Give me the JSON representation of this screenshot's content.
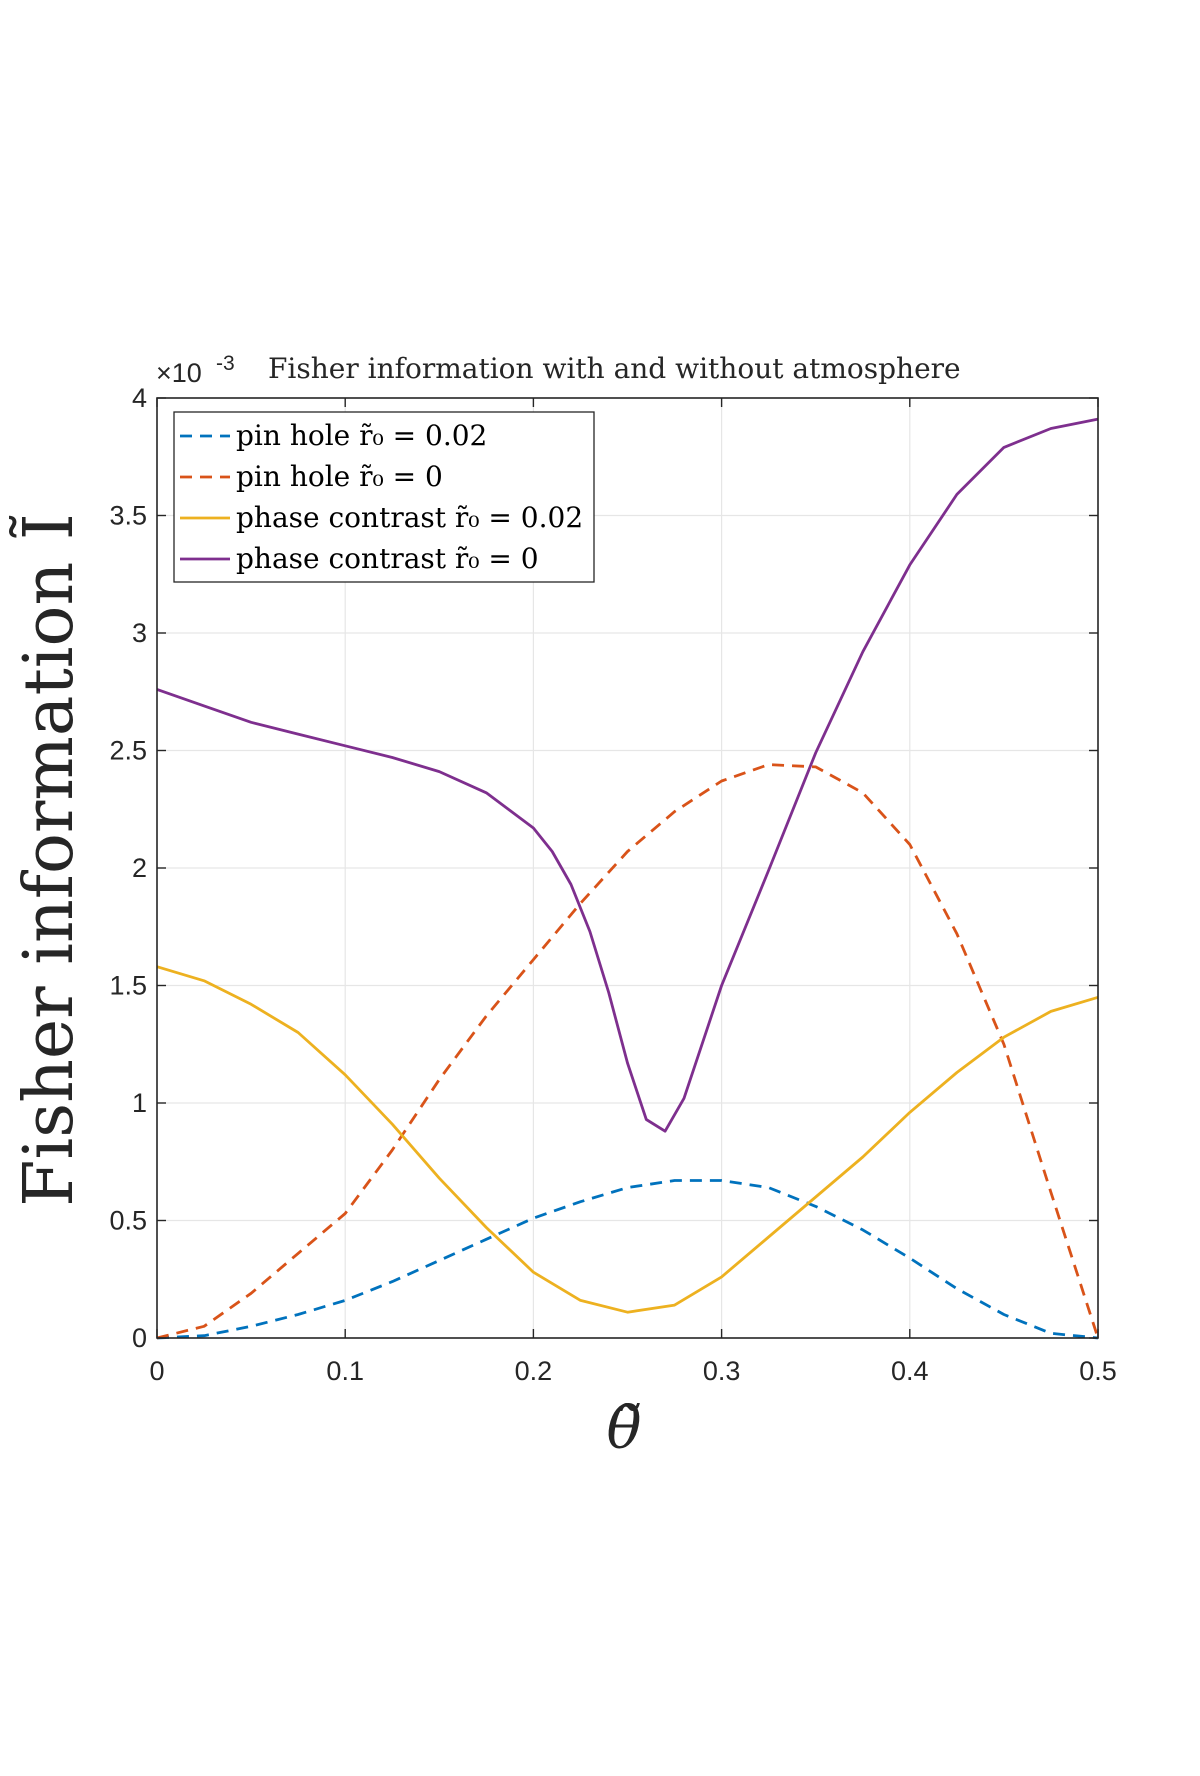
{
  "chart_data": {
    "type": "line",
    "title": "Fisher information with and without atmosphere",
    "xlabel": "θ̃",
    "ylabel": "Fisher information Ĩ",
    "y_exponent_label": "×10",
    "y_exponent_power": "-3",
    "xlim": [
      0,
      0.5
    ],
    "ylim": [
      0,
      4
    ],
    "xticks": [
      "0",
      "0.1",
      "0.2",
      "0.3",
      "0.4",
      "0.5"
    ],
    "yticks": [
      "0",
      "0.5",
      "1",
      "1.5",
      "2",
      "2.5",
      "3",
      "3.5",
      "4"
    ],
    "grid": true,
    "legend_position": "top-left",
    "series": [
      {
        "name": "pin hole r̃₀ = 0.02",
        "color": "#0072BD",
        "style": "dashed",
        "x": [
          0,
          0.025,
          0.05,
          0.075,
          0.1,
          0.125,
          0.15,
          0.175,
          0.2,
          0.225,
          0.25,
          0.275,
          0.3,
          0.325,
          0.35,
          0.375,
          0.4,
          0.425,
          0.45,
          0.475,
          0.5
        ],
        "y": [
          0,
          0.01,
          0.05,
          0.1,
          0.16,
          0.24,
          0.33,
          0.42,
          0.51,
          0.58,
          0.64,
          0.67,
          0.67,
          0.64,
          0.56,
          0.46,
          0.34,
          0.21,
          0.1,
          0.02,
          0
        ]
      },
      {
        "name": "pin hole r̃₀ = 0",
        "color": "#D95319",
        "style": "dashed",
        "x": [
          0,
          0.025,
          0.05,
          0.075,
          0.1,
          0.125,
          0.15,
          0.175,
          0.2,
          0.225,
          0.25,
          0.275,
          0.3,
          0.325,
          0.35,
          0.375,
          0.4,
          0.425,
          0.45,
          0.475,
          0.5
        ],
        "y": [
          0,
          0.05,
          0.19,
          0.36,
          0.53,
          0.8,
          1.1,
          1.37,
          1.61,
          1.85,
          2.07,
          2.24,
          2.37,
          2.44,
          2.43,
          2.32,
          2.1,
          1.72,
          1.25,
          0.62,
          0
        ]
      },
      {
        "name": "phase contrast r̃₀ = 0.02",
        "color": "#EDB120",
        "style": "solid",
        "x": [
          0,
          0.025,
          0.05,
          0.075,
          0.1,
          0.125,
          0.15,
          0.175,
          0.2,
          0.225,
          0.25,
          0.275,
          0.3,
          0.325,
          0.35,
          0.375,
          0.4,
          0.425,
          0.45,
          0.475,
          0.5
        ],
        "y": [
          1.58,
          1.52,
          1.42,
          1.3,
          1.12,
          0.91,
          0.68,
          0.47,
          0.28,
          0.16,
          0.11,
          0.14,
          0.26,
          0.43,
          0.6,
          0.77,
          0.96,
          1.13,
          1.28,
          1.39,
          1.45
        ]
      },
      {
        "name": "phase contrast r̃₀ = 0",
        "color": "#7E2F8E",
        "style": "solid",
        "x": [
          0,
          0.025,
          0.05,
          0.075,
          0.1,
          0.125,
          0.15,
          0.175,
          0.2,
          0.21,
          0.22,
          0.23,
          0.24,
          0.25,
          0.26,
          0.27,
          0.28,
          0.29,
          0.3,
          0.325,
          0.35,
          0.375,
          0.4,
          0.425,
          0.45,
          0.475,
          0.5
        ],
        "y": [
          2.76,
          2.69,
          2.62,
          2.57,
          2.52,
          2.47,
          2.41,
          2.32,
          2.17,
          2.07,
          1.93,
          1.73,
          1.47,
          1.17,
          0.93,
          0.88,
          1.02,
          1.26,
          1.5,
          1.99,
          2.49,
          2.92,
          3.29,
          3.59,
          3.79,
          3.87,
          3.91
        ]
      }
    ]
  }
}
